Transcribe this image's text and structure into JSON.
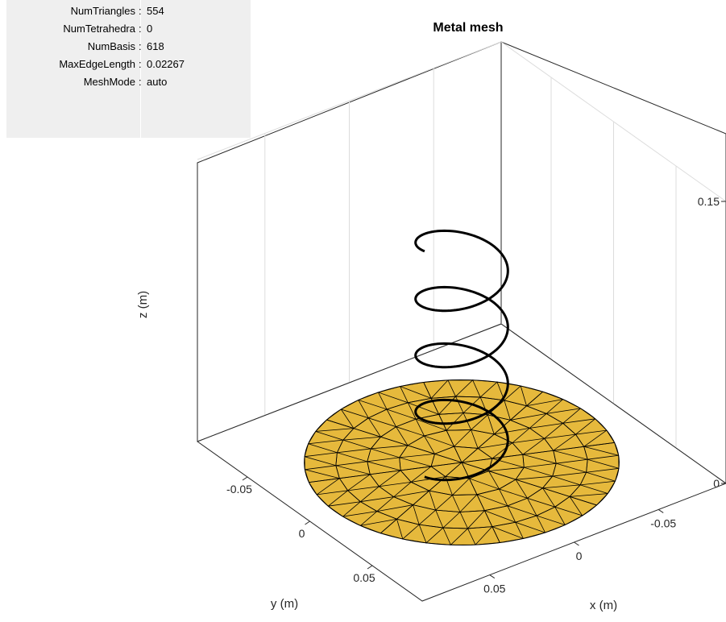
{
  "info_panel": {
    "rows": [
      {
        "key": "NumTriangles",
        "value": "554"
      },
      {
        "key": "NumTetrahedra",
        "value": "0"
      },
      {
        "key": "NumBasis",
        "value": "618"
      },
      {
        "key": "MaxEdgeLength",
        "value": "0.02267"
      },
      {
        "key": "MeshMode",
        "value": "auto"
      }
    ],
    "separator": ":"
  },
  "chart_data": {
    "type": "3d-mesh",
    "title": "Metal mesh",
    "xlabel": "x (m)",
    "ylabel": "y (m)",
    "zlabel": "z (m)",
    "xlim": [
      -0.09,
      0.09
    ],
    "ylim": [
      -0.09,
      0.09
    ],
    "zlim": [
      0,
      0.15
    ],
    "x_ticks": [
      "-0.05",
      "0",
      "0.05"
    ],
    "y_ticks": [
      "-0.05",
      "0",
      "0.05"
    ],
    "z_ticks": [
      "0",
      "0.15"
    ],
    "grid": true,
    "ground_plane": {
      "shape": "disc",
      "center": [
        0,
        0,
        0
      ],
      "radius": 0.075,
      "color": "#E6B93C",
      "edge_color": "#000000"
    },
    "helix": {
      "turns": 4,
      "radius": 0.022,
      "z_start": 0,
      "z_end": 0.12,
      "color": "#000000"
    }
  }
}
